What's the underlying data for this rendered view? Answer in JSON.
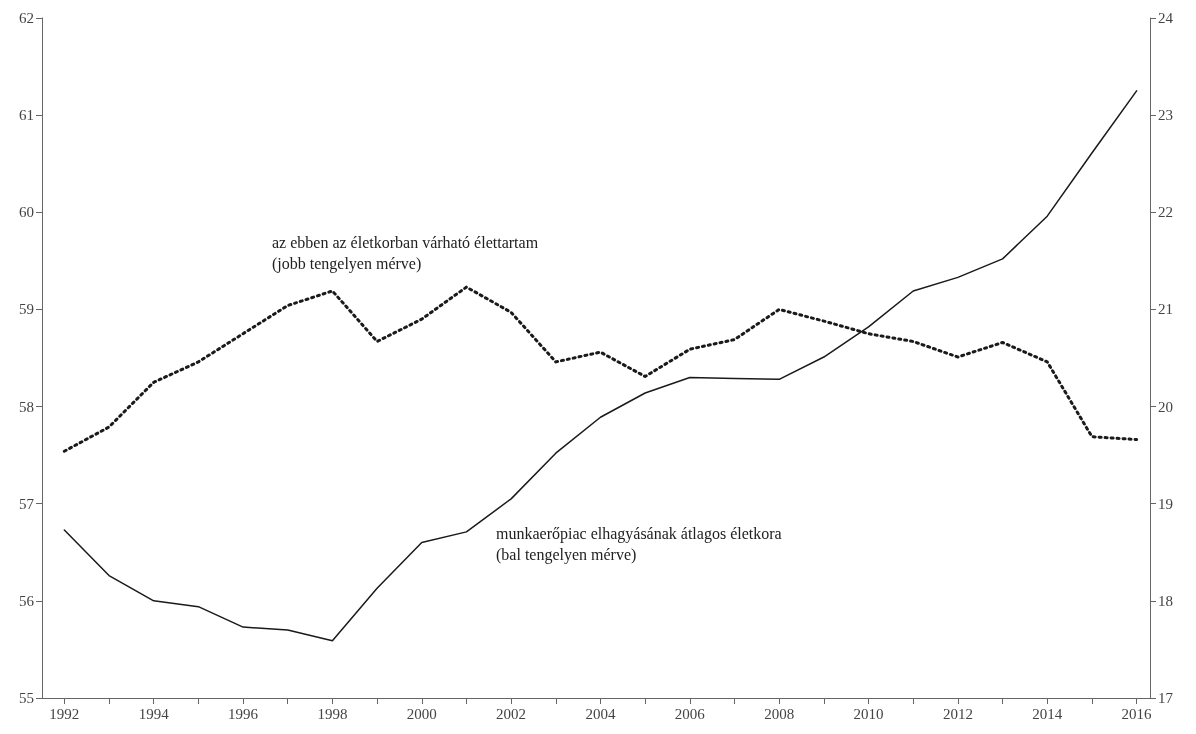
{
  "chart_data": {
    "type": "line",
    "x": [
      1992,
      1993,
      1994,
      1995,
      1996,
      1997,
      1998,
      1999,
      2000,
      2001,
      2002,
      2003,
      2004,
      2005,
      2006,
      2007,
      2008,
      2009,
      2010,
      2011,
      2012,
      2013,
      2014,
      2015,
      2016
    ],
    "series": [
      {
        "color": "#1a1a1a",
        "line_style": "solid",
        "values": [
          56.73,
          56.26,
          56.0,
          55.94,
          55.73,
          55.7,
          55.59,
          56.13,
          56.6,
          56.71,
          57.05,
          57.52,
          57.89,
          58.14,
          58.3,
          58.29,
          58.28,
          58.51,
          58.82,
          59.19,
          59.33,
          59.52,
          59.96,
          60.61,
          61.25
        ]
      },
      {
        "color": "#1a1a1a",
        "line_style": "dotted",
        "axis": "y2",
        "values": [
          19.54,
          19.79,
          20.25,
          20.46,
          20.75,
          21.04,
          21.19,
          20.67,
          20.9,
          21.23,
          20.97,
          20.46,
          20.56,
          20.31,
          20.59,
          20.69,
          21.0,
          20.88,
          20.75,
          20.67,
          20.51,
          20.66,
          20.46,
          19.69,
          19.66
        ]
      }
    ],
    "annotations": [
      "az ebben az életkorban várható élettartam\n(jobb tengelyen mérve)",
      "munkaerőpiac elhagyásának átlagos életkora\n(bal tengelyen mérve)"
    ],
    "xlim": [
      1991.5,
      2016.3
    ],
    "xticks": [
      1992,
      {
        "value": 1993,
        "label": null
      },
      1994,
      {
        "value": 1995,
        "label": null
      },
      1996,
      {
        "value": 1997,
        "label": null
      },
      1998,
      {
        "value": 1999,
        "label": null
      },
      2000,
      {
        "value": 2001,
        "label": null
      },
      2002,
      {
        "value": 2003,
        "label": null
      },
      2004,
      {
        "value": 2005,
        "label": null
      },
      2006,
      {
        "value": 2007,
        "label": null
      },
      2008,
      {
        "value": 2009,
        "label": null
      },
      2010,
      {
        "value": 2011,
        "label": null
      },
      2012,
      {
        "value": 2013,
        "label": null
      },
      2014,
      {
        "value": 2015,
        "label": null
      },
      2016
    ],
    "ylim": [
      55,
      62
    ],
    "yticks": [
      55,
      56,
      57,
      58,
      59,
      60,
      61,
      62
    ],
    "y2lim": [
      17,
      24
    ],
    "y2ticks": [
      17,
      18,
      19,
      20,
      21,
      22,
      23,
      24
    ],
    "marker": "none"
  }
}
